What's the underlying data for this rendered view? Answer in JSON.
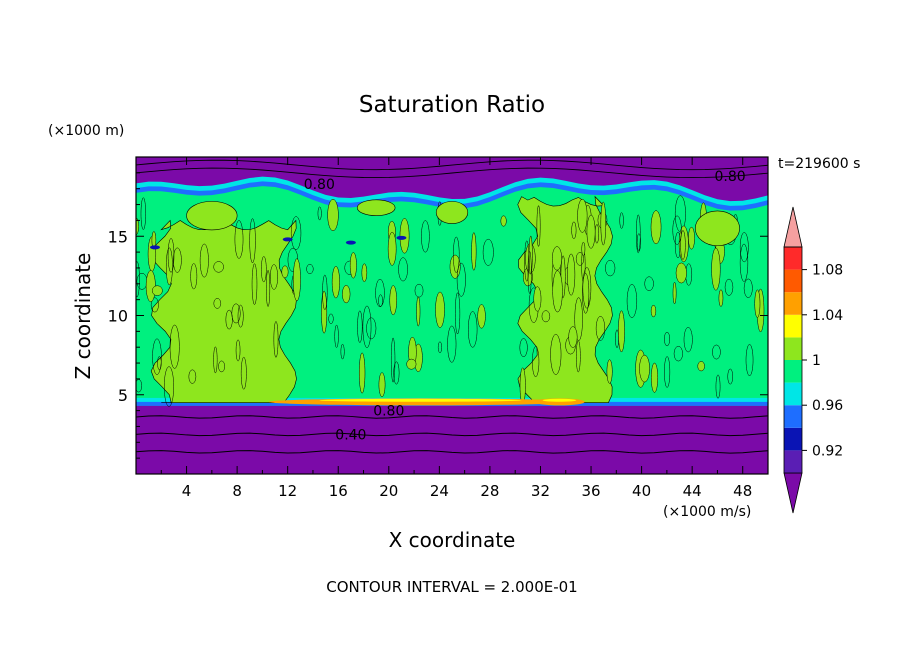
{
  "chart_data": {
    "type": "heatmap",
    "title": "Saturation Ratio",
    "xlabel": "X coordinate",
    "ylabel": "Z coordinate",
    "x_unit": "(×1000 m/s)",
    "y_unit": "(×1000 m)",
    "time_label": "t=219600 s",
    "footer": "CONTOUR INTERVAL = 2.000E-01",
    "xlim": [
      0,
      50
    ],
    "ylim": [
      0,
      20
    ],
    "x_ticks": [
      4,
      8,
      12,
      16,
      20,
      24,
      28,
      32,
      36,
      40,
      44,
      48
    ],
    "y_ticks": [
      5,
      10,
      15
    ],
    "contour_labels": [
      {
        "text": "0.80",
        "x": 14.5,
        "y": 18.3
      },
      {
        "text": "0.80",
        "x": 47.0,
        "y": 18.8
      },
      {
        "text": "0.80",
        "x": 20.0,
        "y": 4.0
      },
      {
        "text": "0.40",
        "x": 17.0,
        "y": 2.5
      }
    ],
    "colorbar": {
      "tick_labels": [
        "1.08",
        "1.04",
        "1",
        "0.96",
        "0.92"
      ],
      "tick_values": [
        1.08,
        1.04,
        1.0,
        0.96,
        0.92
      ],
      "levels": [
        {
          "min": null,
          "max": 0.92,
          "color": "#7b0aa8"
        },
        {
          "min": 0.9,
          "max": 0.92,
          "color": "#5a1eb4"
        },
        {
          "min": 0.92,
          "max": 0.94,
          "color": "#0a14b4"
        },
        {
          "min": 0.94,
          "max": 0.96,
          "color": "#1e6eff"
        },
        {
          "min": 0.96,
          "max": 0.98,
          "color": "#00e6e6"
        },
        {
          "min": 0.98,
          "max": 1.0,
          "color": "#00f07f"
        },
        {
          "min": 1.0,
          "max": 1.02,
          "color": "#8ee61e"
        },
        {
          "min": 1.02,
          "max": 1.04,
          "color": "#ffff00"
        },
        {
          "min": 1.04,
          "max": 1.06,
          "color": "#ffa000"
        },
        {
          "min": 1.06,
          "max": 1.08,
          "color": "#ff5a00"
        },
        {
          "min": 1.08,
          "max": 1.1,
          "color": "#ff2a2a"
        },
        {
          "min": 1.1,
          "max": null,
          "color": "#f5a0a0"
        }
      ]
    },
    "regions": {
      "lower_dry_layer_top": 4.3,
      "upper_dry_layer_base": 18.0,
      "supersaturated_columns": [
        {
          "x_range": [
            2,
            12
          ],
          "y_range": [
            4.5,
            16
          ]
        },
        {
          "x_range": [
            31,
            37
          ],
          "y_range": [
            4.5,
            17.5
          ]
        }
      ]
    }
  }
}
